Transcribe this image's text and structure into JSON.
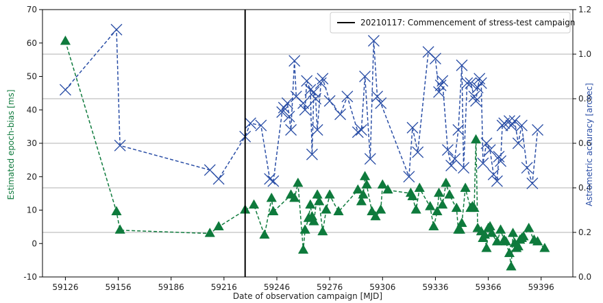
{
  "chart_data": {
    "type": "line",
    "title": "",
    "xlabel": "Date of observation campaign [MJD]",
    "ylabel_left": "Estimated epoch-bias [ms]",
    "ylabel_right": "Astrometric accuracy [arcsec]",
    "xlim": [
      59113,
      59414
    ],
    "ylim_left": [
      -10,
      70
    ],
    "ylim_right": [
      0.0,
      1.2
    ],
    "x_ticks": [
      59126,
      59156,
      59186,
      59216,
      59246,
      59276,
      59306,
      59336,
      59366,
      59396
    ],
    "y_ticks_left": [
      -10,
      0,
      10,
      20,
      30,
      40,
      50,
      60,
      70
    ],
    "y_ticks_right": [
      "0.0",
      "0.2",
      "0.4",
      "0.6",
      "0.8",
      "1.0",
      "1.2"
    ],
    "grid": "horizontal (right axis)",
    "legend_position": "top-right",
    "vline": {
      "x": 59228,
      "label": "20210117: Commencement of stress-test campaign",
      "color": "#000000"
    },
    "colors": {
      "epoch_bias": "#0e7a3c",
      "accuracy": "#2a4ea6"
    },
    "series": [
      {
        "axis": "left",
        "marker": "triangle",
        "color": "#0e7a3c",
        "x": [
          59126,
          59155,
          59157,
          59208,
          59213,
          59228,
          59233,
          59239,
          59243,
          59244,
          59254,
          59256,
          59258,
          59261,
          59262,
          59264,
          59265,
          59266,
          59267,
          59269,
          59270,
          59272,
          59274,
          59276,
          59281,
          59292,
          59294,
          59295,
          59296,
          59297,
          59300,
          59302,
          59305,
          59306,
          59309,
          59322,
          59323,
          59325,
          59327,
          59333,
          59335,
          59337,
          59338,
          59340,
          59342,
          59344,
          59348,
          59349,
          59350,
          59351,
          59353,
          59356,
          59357,
          59358,
          59359,
          59360,
          59362,
          59363,
          59364,
          59365,
          59366,
          59367,
          59368,
          59371,
          59373,
          59375,
          59376,
          59378,
          59379,
          59380,
          59381,
          59382,
          59383,
          59384,
          59385,
          59386,
          59389,
          59392,
          59394,
          59398
        ],
        "y": [
          60.5,
          9.5,
          4.0,
          3.0,
          5.0,
          10.0,
          11.5,
          2.5,
          13.5,
          9.5,
          14.5,
          13.5,
          18.0,
          -2.0,
          4.0,
          7.5,
          11.5,
          8.0,
          6.5,
          14.5,
          12.5,
          3.5,
          10.0,
          14.5,
          9.5,
          16.0,
          12.5,
          14.5,
          20.0,
          17.5,
          9.5,
          8.0,
          10.0,
          17.5,
          16.0,
          15.0,
          14.0,
          10.0,
          16.5,
          11.0,
          5.0,
          9.5,
          15.0,
          11.5,
          18.0,
          14.5,
          10.5,
          4.0,
          4.0,
          6.0,
          16.5,
          10.5,
          11.0,
          10.5,
          31.0,
          4.5,
          3.5,
          1.5,
          2.5,
          -1.5,
          4.5,
          5.0,
          3.0,
          0.5,
          4.0,
          1.0,
          0.5,
          -3.0,
          -7.0,
          3.0,
          0.0,
          -1.5,
          -1.0,
          1.0,
          1.5,
          2.0,
          4.5,
          1.0,
          0.5,
          -1.5
        ]
      },
      {
        "axis": "right",
        "marker": "x",
        "color": "#2a4ea6",
        "x": [
          59126,
          59155,
          59157,
          59208,
          59213,
          59228,
          59231,
          59237,
          59242,
          59244,
          59249,
          59250,
          59252,
          59253,
          59254,
          59256,
          59257,
          59261,
          59262,
          59263,
          59265,
          59266,
          59267,
          59268,
          59269,
          59271,
          59272,
          59276,
          59282,
          59286,
          59292,
          59294,
          59296,
          59299,
          59301,
          59303,
          59305,
          59321,
          59323,
          59326,
          59332,
          59336,
          59338,
          59339,
          59340,
          59343,
          59345,
          59347,
          59349,
          59351,
          59352,
          59354,
          59356,
          59358,
          59359,
          59360,
          59361,
          59362,
          59363,
          59365,
          59367,
          59369,
          59371,
          59372,
          59373,
          59374,
          59375,
          59378,
          59379,
          59381,
          59383,
          59385,
          59388,
          59391,
          59394
        ],
        "y": [
          0.84,
          1.11,
          0.59,
          0.48,
          0.44,
          0.63,
          0.69,
          0.68,
          0.44,
          0.43,
          0.74,
          0.76,
          0.78,
          0.72,
          0.66,
          0.97,
          0.81,
          0.78,
          0.75,
          0.88,
          0.84,
          0.55,
          0.83,
          0.8,
          0.66,
          0.87,
          0.89,
          0.79,
          0.73,
          0.81,
          0.65,
          0.66,
          0.9,
          0.53,
          1.06,
          0.81,
          0.78,
          0.45,
          0.67,
          0.56,
          1.01,
          0.98,
          0.83,
          0.86,
          0.88,
          0.57,
          0.5,
          0.53,
          0.66,
          0.95,
          0.49,
          0.87,
          0.87,
          0.81,
          0.79,
          0.85,
          0.89,
          0.87,
          0.51,
          0.6,
          0.57,
          0.46,
          0.43,
          0.54,
          0.52,
          0.68,
          0.69,
          0.7,
          0.68,
          0.7,
          0.6,
          0.68,
          0.49,
          0.42,
          0.66
        ]
      }
    ]
  }
}
